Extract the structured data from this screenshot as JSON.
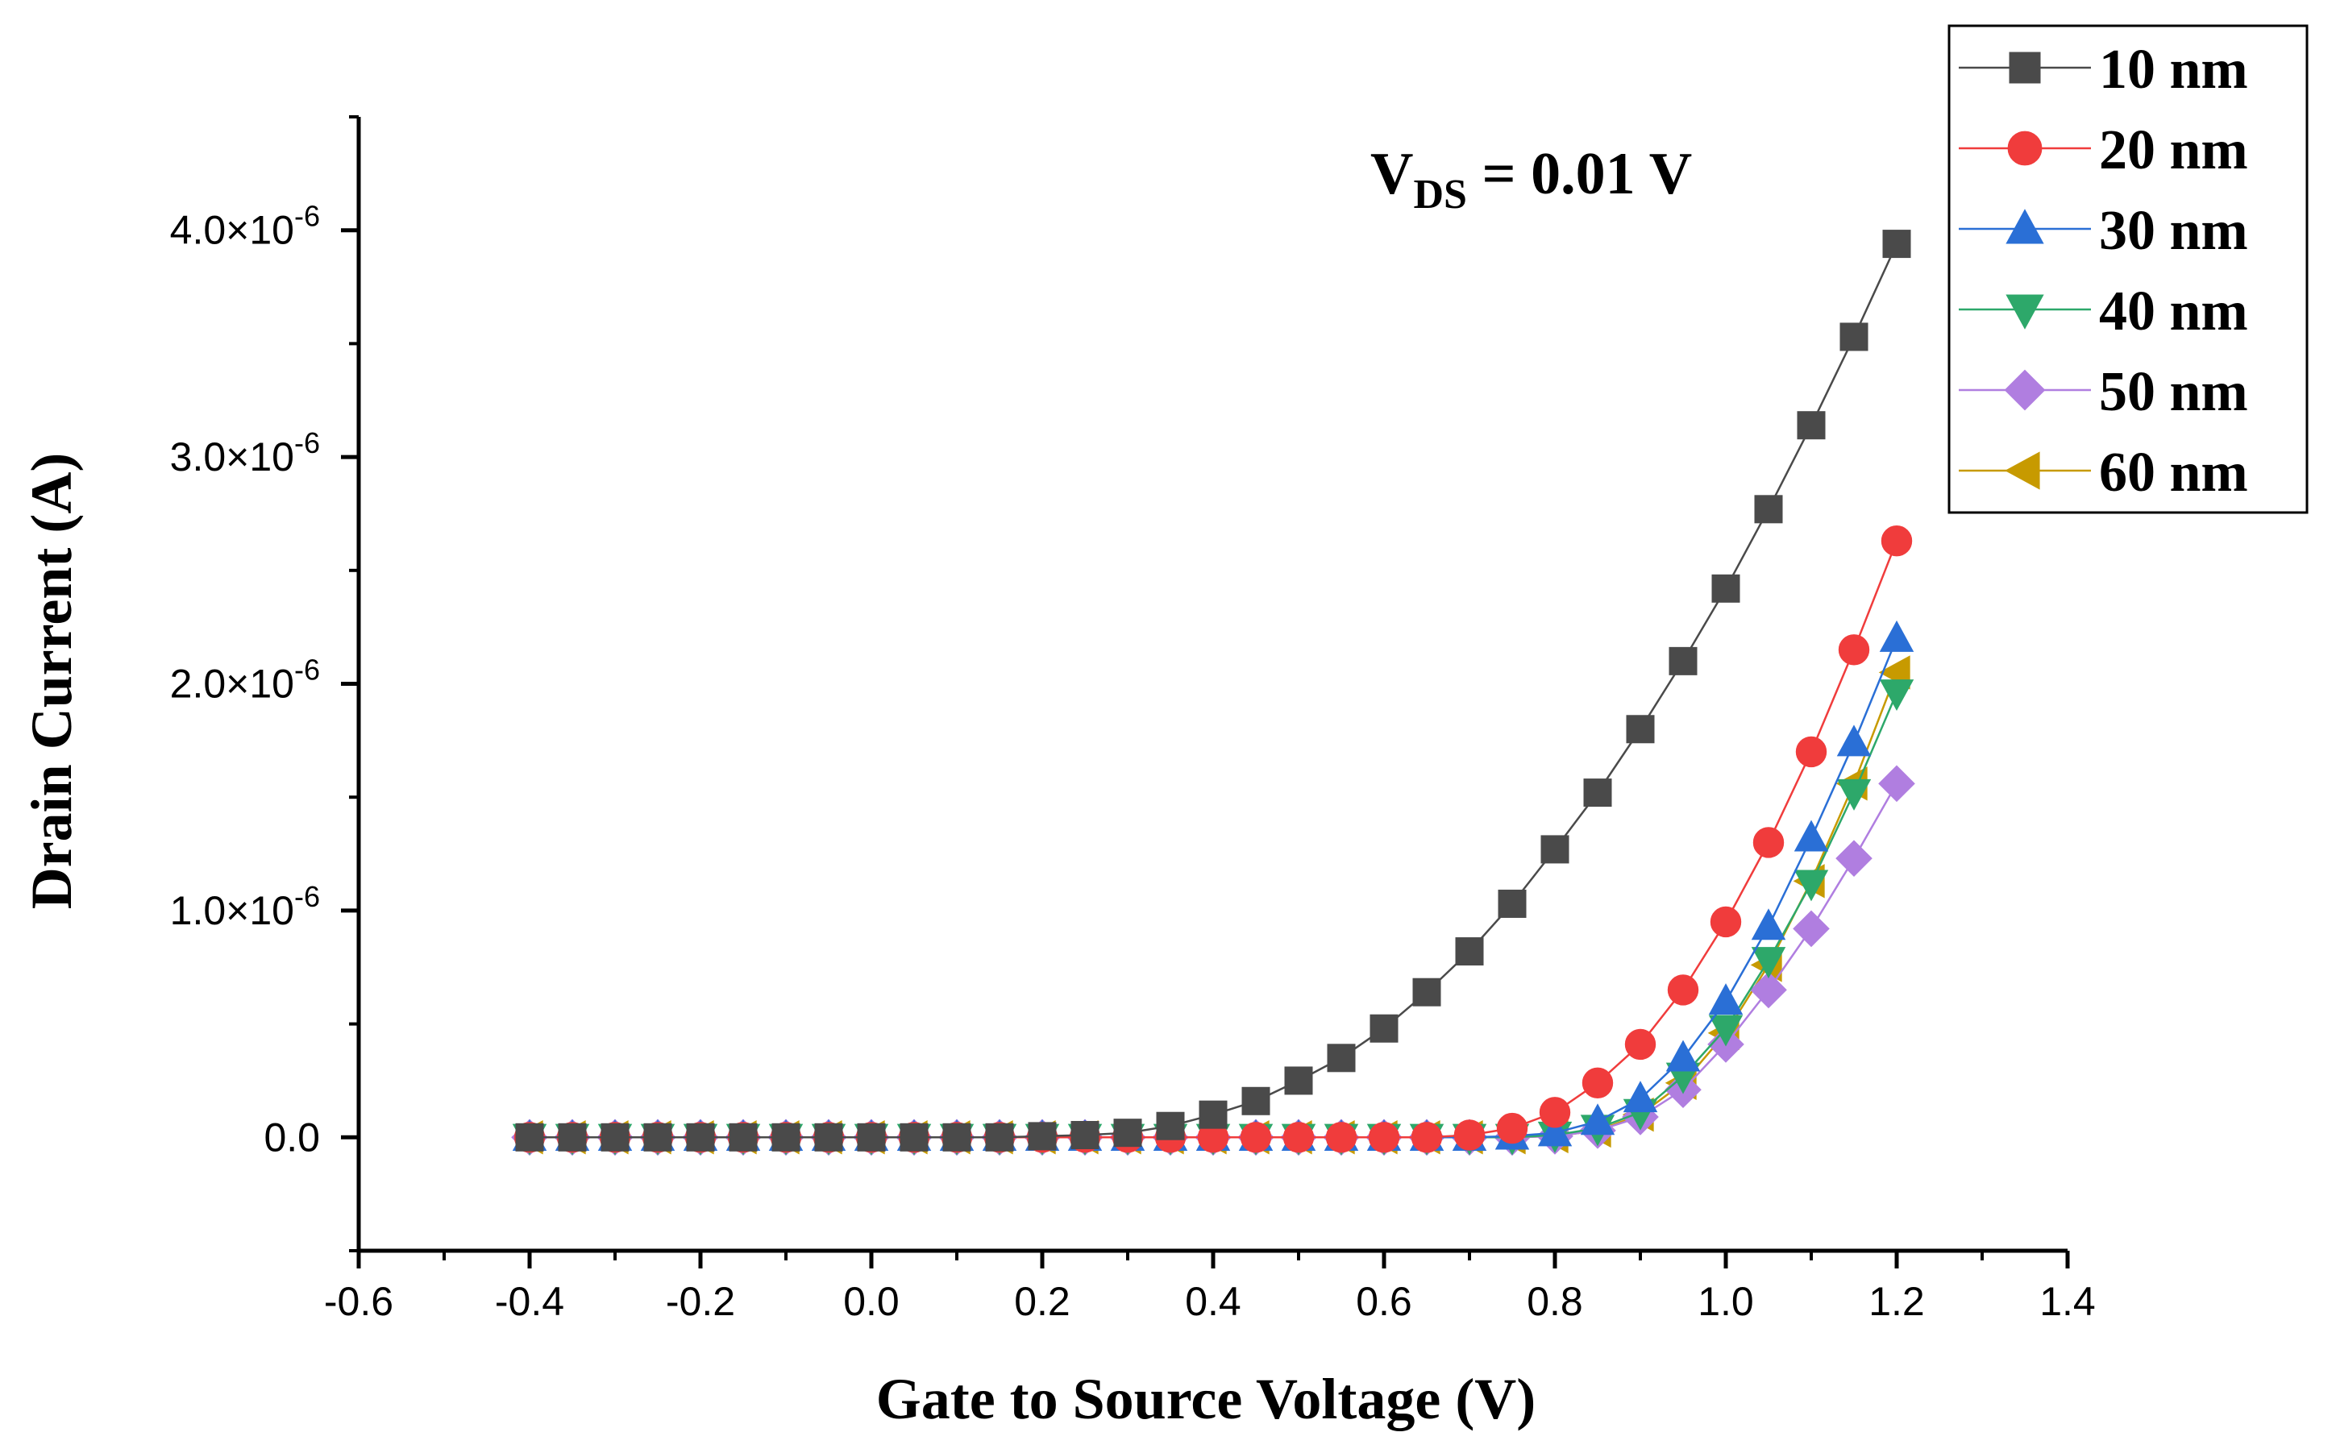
{
  "chart_data": {
    "type": "line",
    "title": "",
    "xlabel": "Gate to Source Voltage (V)",
    "ylabel": "Drain Current (A)",
    "annotation": {
      "prefix": "V",
      "subscript": "DS",
      "suffix": " = 0.01 V"
    },
    "xlim": [
      -0.6,
      1.4
    ],
    "ylim": [
      -5e-07,
      4.5e-06
    ],
    "xticks": [
      -0.6,
      -0.4,
      -0.2,
      0.0,
      0.2,
      0.4,
      0.6,
      0.8,
      1.0,
      1.2,
      1.4
    ],
    "xtick_labels": [
      "-0.6",
      "-0.4",
      "-0.2",
      "0.0",
      "0.2",
      "0.4",
      "0.6",
      "0.8",
      "1.0",
      "1.2",
      "1.4"
    ],
    "yticks": [
      0,
      1e-06,
      2e-06,
      3e-06,
      4e-06
    ],
    "ytick_labels": [
      {
        "mantissa": "0.0",
        "exponent": ""
      },
      {
        "mantissa": "1.0×10",
        "exponent": "-6"
      },
      {
        "mantissa": "2.0×10",
        "exponent": "-6"
      },
      {
        "mantissa": "3.0×10",
        "exponent": "-6"
      },
      {
        "mantissa": "4.0×10",
        "exponent": "-6"
      }
    ],
    "grid": false,
    "legend_position": "top-right",
    "x": [
      -0.4,
      -0.35,
      -0.3,
      -0.25,
      -0.2,
      -0.15,
      -0.1,
      -0.05,
      0.0,
      0.05,
      0.1,
      0.15,
      0.2,
      0.25,
      0.3,
      0.35,
      0.4,
      0.45,
      0.5,
      0.55,
      0.6,
      0.65,
      0.7,
      0.75,
      0.8,
      0.85,
      0.9,
      0.95,
      1.0,
      1.05,
      1.1,
      1.15,
      1.2
    ],
    "series": [
      {
        "name": "10 nm",
        "color": "#4a4a4a",
        "marker": "square",
        "values": [
          0,
          0,
          0,
          0,
          0,
          0,
          0,
          0,
          0,
          0,
          0,
          0,
          5e-09,
          1e-08,
          2e-08,
          5e-08,
          1e-07,
          1.6e-07,
          2.5e-07,
          3.5e-07,
          4.8e-07,
          6.4e-07,
          8.2e-07,
          1.03e-06,
          1.27e-06,
          1.52e-06,
          1.8e-06,
          2.1e-06,
          2.42e-06,
          2.77e-06,
          3.14e-06,
          3.53e-06,
          3.94e-06
        ]
      },
      {
        "name": "20 nm",
        "color": "#f03c3c",
        "marker": "circle",
        "values": [
          0,
          0,
          0,
          0,
          0,
          0,
          0,
          0,
          0,
          0,
          0,
          0,
          0,
          0,
          0,
          0,
          0,
          0,
          0,
          0,
          0,
          0,
          1e-08,
          4e-08,
          1.1e-07,
          2.4e-07,
          4.1e-07,
          6.5e-07,
          9.5e-07,
          1.3e-06,
          1.7e-06,
          2.15e-06,
          2.63e-06
        ]
      },
      {
        "name": "30 nm",
        "color": "#2a6fd6",
        "marker": "triangle-up",
        "values": [
          0,
          0,
          0,
          0,
          0,
          0,
          0,
          0,
          0,
          0,
          0,
          0,
          0,
          0,
          0,
          0,
          0,
          0,
          0,
          0,
          0,
          0,
          0,
          5e-09,
          2e-08,
          7e-08,
          1.7e-07,
          3.5e-07,
          6e-07,
          9.3e-07,
          1.32e-06,
          1.74e-06,
          2.2e-06
        ]
      },
      {
        "name": "40 nm",
        "color": "#2da86a",
        "marker": "triangle-down",
        "values": [
          0,
          0,
          0,
          0,
          0,
          0,
          0,
          0,
          0,
          0,
          0,
          0,
          0,
          0,
          0,
          0,
          0,
          0,
          0,
          0,
          0,
          0,
          0,
          0,
          1e-08,
          4e-08,
          1.1e-07,
          2.7e-07,
          4.8e-07,
          7.8e-07,
          1.12e-06,
          1.52e-06,
          1.96e-06
        ]
      },
      {
        "name": "50 nm",
        "color": "#b07ee0",
        "marker": "diamond",
        "values": [
          0,
          0,
          0,
          0,
          0,
          0,
          0,
          0,
          0,
          0,
          0,
          0,
          0,
          0,
          0,
          0,
          0,
          0,
          0,
          0,
          0,
          0,
          0,
          0,
          5e-09,
          3e-08,
          9e-08,
          2.1e-07,
          4.1e-07,
          6.5e-07,
          9.2e-07,
          1.23e-06,
          1.56e-06
        ]
      },
      {
        "name": "60 nm",
        "color": "#c79a00",
        "marker": "triangle-left",
        "values": [
          0,
          0,
          0,
          0,
          0,
          0,
          0,
          0,
          0,
          0,
          0,
          0,
          0,
          0,
          0,
          0,
          0,
          0,
          0,
          0,
          0,
          0,
          0,
          0,
          5e-09,
          3e-08,
          1e-07,
          2.4e-07,
          4.6e-07,
          7.6e-07,
          1.13e-06,
          1.56e-06,
          2.05e-06
        ]
      }
    ]
  }
}
